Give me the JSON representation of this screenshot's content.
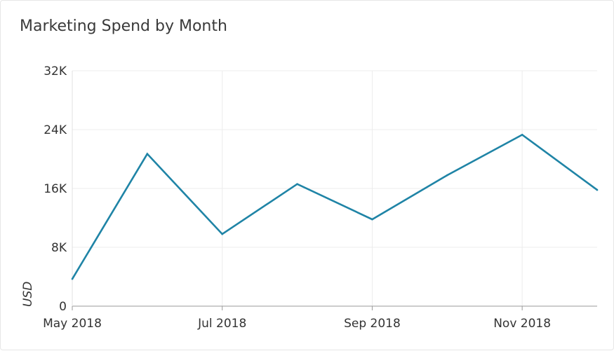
{
  "chart_data": {
    "type": "line",
    "title": "Marketing Spend by Month",
    "xlabel": "",
    "ylabel": "USD",
    "x": [
      "2018-05",
      "2018-06",
      "2018-07",
      "2018-08",
      "2018-09",
      "2018-10",
      "2018-11",
      "2018-12"
    ],
    "x_tick_labels": [
      "May 2018",
      "Jul 2018",
      "Sep 2018",
      "Nov 2018"
    ],
    "x_tick_positions": [
      "2018-05",
      "2018-07",
      "2018-09",
      "2018-11"
    ],
    "ylim": [
      0,
      32000
    ],
    "y_ticks": [
      0,
      8000,
      16000,
      24000,
      32000
    ],
    "y_tick_labels": [
      "0",
      "8K",
      "16K",
      "24K",
      "32K"
    ],
    "series": [
      {
        "values": [
          3700,
          20700,
          9800,
          16600,
          11800,
          17800,
          23300,
          15800
        ],
        "color": "#1f84a6"
      }
    ],
    "grid": true,
    "legend": "none"
  }
}
